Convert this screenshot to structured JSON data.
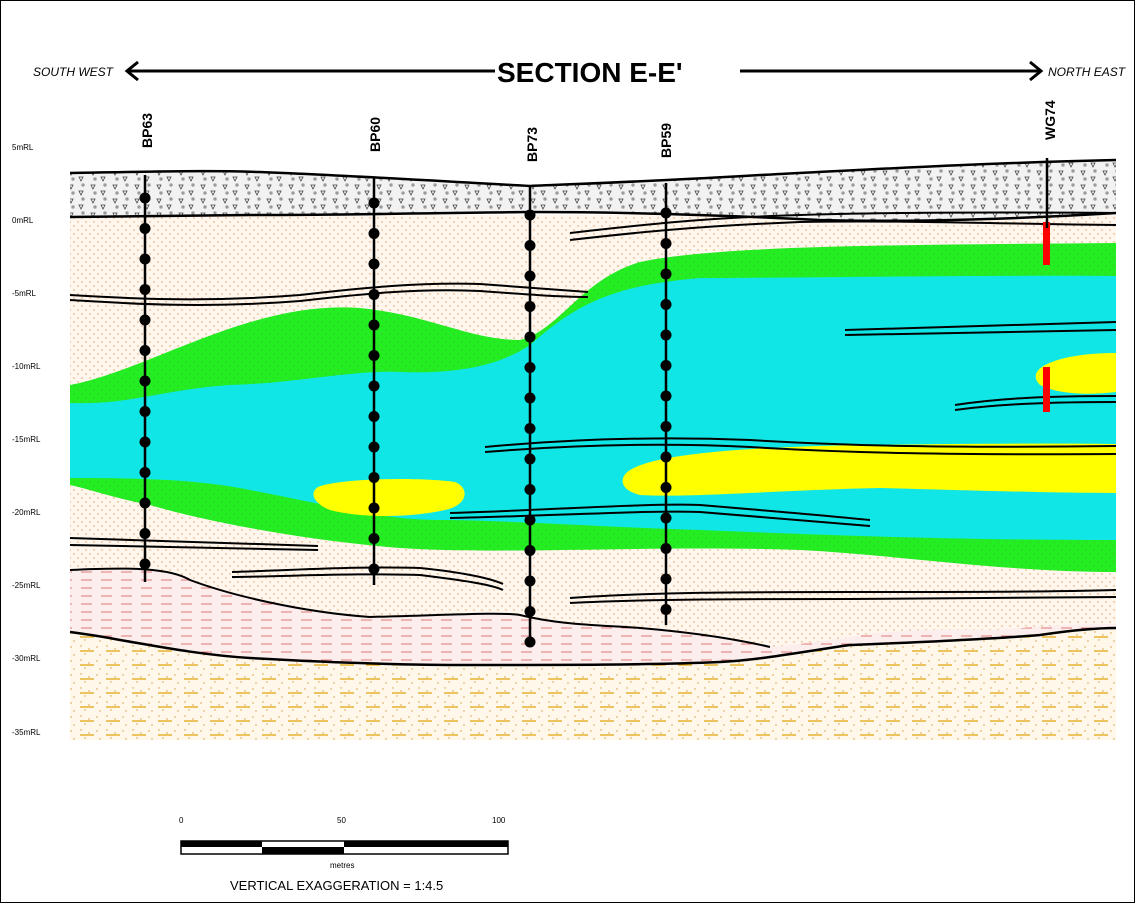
{
  "title": "SECTION E-E'",
  "directions": {
    "left": "SOUTH WEST",
    "right": "NORTH EAST"
  },
  "boreholes": [
    {
      "id": "BP63",
      "x_label": "BP63"
    },
    {
      "id": "BP60",
      "x_label": "BP60"
    },
    {
      "id": "BP73",
      "x_label": "BP73"
    },
    {
      "id": "BP59",
      "x_label": "BP59"
    },
    {
      "id": "WG74",
      "x_label": "WG74"
    }
  ],
  "elevations": [
    "5mRL",
    "0mRL",
    "-5mRL",
    "-10mRL",
    "-15mRL",
    "-20mRL",
    "-25mRL",
    "-30mRL",
    "-35mRL"
  ],
  "scale_bar": {
    "ticks": [
      "0",
      "50",
      "100"
    ],
    "unit": "metres"
  },
  "vertical_exaggeration": "VERTICAL EXAGGERATION = 1:4.5",
  "colors": {
    "sand_fill": "#fff6ee",
    "sand_dots": "#e8a060",
    "green": "#22ee22",
    "cyan": "#11e6e6",
    "yellow": "#ffff00",
    "clay_fill": "#fbe4e4",
    "clay_dash": "#e07a7a",
    "base": "#fff4e0",
    "base_dash": "#e0a000",
    "fill_layer": "#ececec",
    "marker": "#ff0000"
  }
}
